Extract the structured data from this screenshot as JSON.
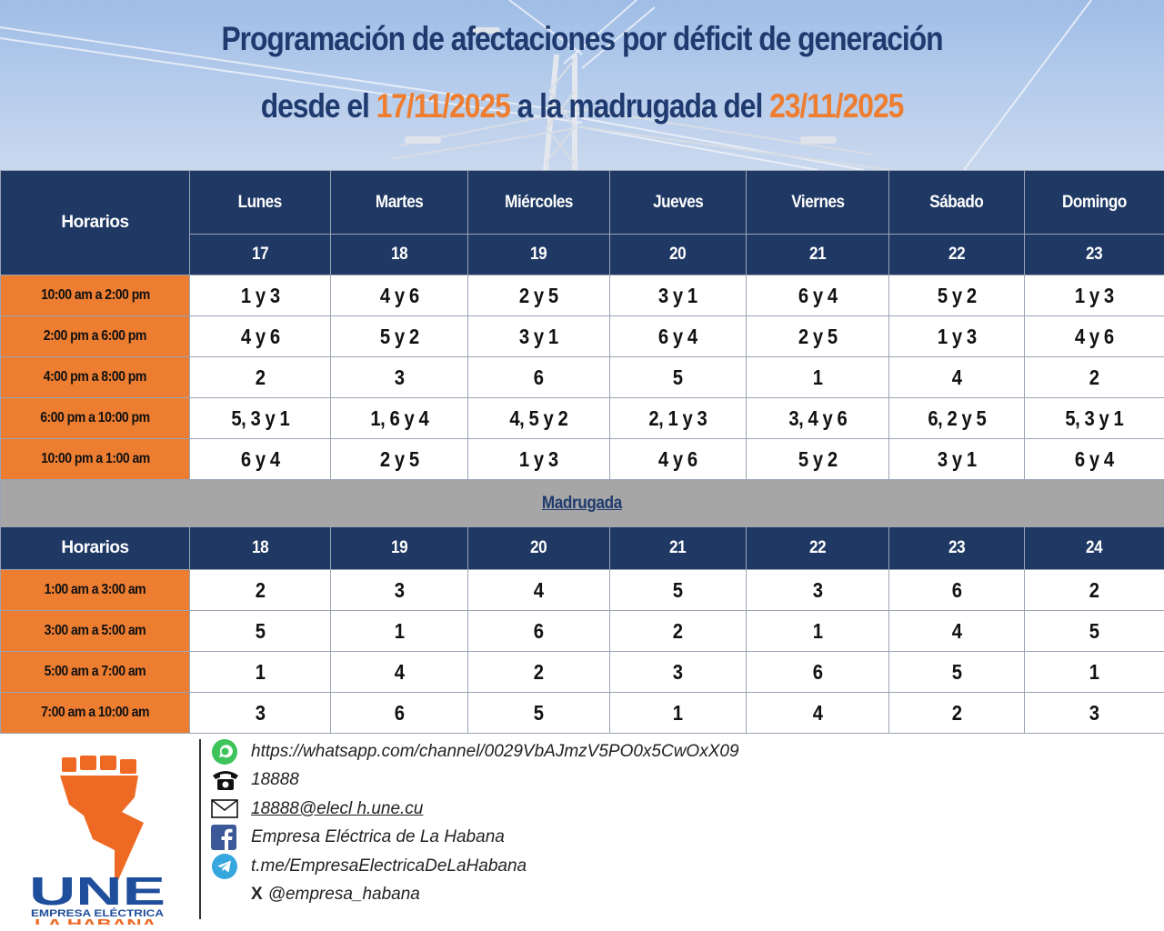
{
  "title": {
    "line1": "Programación de afectaciones por déficit de generación",
    "line2_prefix": "desde el ",
    "date_start": "17/11/2025",
    "line2_middle": " a la madrugada del ",
    "date_end": "23/11/2025"
  },
  "schedule": {
    "horarios_label": "Horarios",
    "days": [
      {
        "name": "Lunes",
        "date": "17"
      },
      {
        "name": "Martes",
        "date": "18"
      },
      {
        "name": "Miércoles",
        "date": "19"
      },
      {
        "name": "Jueves",
        "date": "20"
      },
      {
        "name": "Viernes",
        "date": "21"
      },
      {
        "name": "Sábado",
        "date": "22"
      },
      {
        "name": "Domingo",
        "date": "23"
      }
    ],
    "rows": [
      {
        "slot": "10:00 am a 2:00 pm",
        "values": [
          "1 y 3",
          "4 y 6",
          "2 y 5",
          "3 y 1",
          "6 y 4",
          "5 y 2",
          "1 y 3"
        ]
      },
      {
        "slot": "2:00 pm a 6:00 pm",
        "values": [
          "4 y 6",
          "5 y 2",
          "3 y 1",
          "6 y 4",
          "2 y 5",
          "1 y 3",
          "4 y 6"
        ]
      },
      {
        "slot": "4:00 pm a 8:00 pm",
        "values": [
          "2",
          "3",
          "6",
          "5",
          "1",
          "4",
          "2"
        ]
      },
      {
        "slot": "6:00 pm a 10:00 pm",
        "values": [
          "5, 3 y 1",
          "1, 6 y 4",
          "4, 5 y 2",
          "2, 1 y 3",
          "3, 4 y 6",
          "6, 2 y 5",
          "5, 3 y 1"
        ]
      },
      {
        "slot": "10:00 pm a 1:00 am",
        "values": [
          "6 y 4",
          "2 y 5",
          "1 y 3",
          "4 y 6",
          "5 y 2",
          "3 y 1",
          "6 y 4"
        ]
      }
    ]
  },
  "madrugada": {
    "label": "Madrugada",
    "horarios_label": "Horarios",
    "dates": [
      "18",
      "19",
      "20",
      "21",
      "22",
      "23",
      "24"
    ],
    "rows": [
      {
        "slot": "1:00 am a 3:00 am",
        "values": [
          "2",
          "3",
          "4",
          "5",
          "3",
          "6",
          "2"
        ]
      },
      {
        "slot": "3:00 am a 5:00 am",
        "values": [
          "5",
          "1",
          "6",
          "2",
          "1",
          "4",
          "5"
        ]
      },
      {
        "slot": "5:00 am a 7:00 am",
        "values": [
          "1",
          "4",
          "2",
          "3",
          "6",
          "5",
          "1"
        ]
      },
      {
        "slot": "7:00 am a 10:00 am",
        "values": [
          "3",
          "6",
          "5",
          "1",
          "4",
          "2",
          "3"
        ]
      }
    ]
  },
  "footer": {
    "contacts": [
      {
        "icon": "whatsapp-icon",
        "text": "https://whatsapp.com/channel/0029VbAJmzV5PO0x5CwOxX09"
      },
      {
        "icon": "telephone-icon",
        "text": "18888"
      },
      {
        "icon": "envelope-icon",
        "text": "18888@elecl h.une.cu"
      },
      {
        "icon": "facebook-icon",
        "text": "Empresa Eléctrica de La Habana"
      },
      {
        "icon": "telegram-icon",
        "text": "t.me/EmpresaElectricaDeLaHabana"
      },
      {
        "icon": "x-icon",
        "label": "X",
        "text": "@empresa_habana"
      }
    ],
    "logo": {
      "name": "UNE",
      "line2": "EMPRESA ELÉCTRICA",
      "line3": "LA HABANA"
    }
  },
  "colors": {
    "navy": "#1f3864",
    "orange": "#ed7d31",
    "title_blue": "#1f3a6e",
    "date_orange": "#ee7d2f",
    "gray_bar": "#a6a6a6"
  }
}
